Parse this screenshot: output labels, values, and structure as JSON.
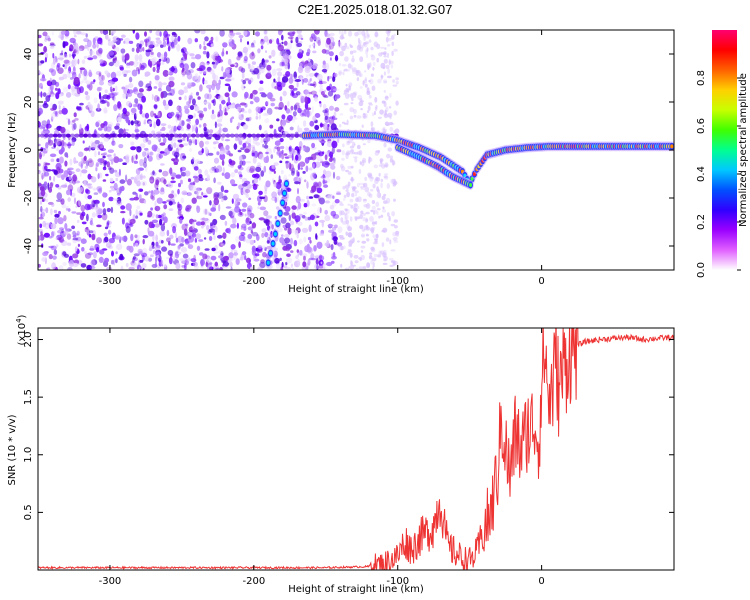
{
  "title": "C2E1.2025.018.01.32.G07",
  "chart_data": [
    {
      "type": "heatmap",
      "xlabel": "Height of straight line (km)",
      "ylabel": "Frequency (Hz)",
      "xlim": [
        -350,
        92
      ],
      "ylim": [
        -50,
        50
      ],
      "xticks": [
        -300,
        -200,
        -100,
        0
      ],
      "yticks": [
        -40,
        -20,
        0,
        20,
        40
      ],
      "colorbar": {
        "label": "Normalized spectral amplitude",
        "range": [
          0,
          1
        ],
        "ticks": [
          "0.0",
          "0.2",
          "0.4",
          "0.6",
          "0.8"
        ],
        "colors": [
          "#ffffff",
          "#e060ff",
          "#9a00ff",
          "#3000ff",
          "#0050ff",
          "#00c8ff",
          "#00ff90",
          "#40ff00",
          "#c8ff00",
          "#ffd000",
          "#ff6000",
          "#ff0000",
          "#ff0070"
        ]
      },
      "traces": [
        {
          "name": "",
          "points": [
            [
              -190,
              -47
            ],
            [
              -185,
              -35
            ],
            [
              -180,
              -22
            ],
            [
              -176,
              -10
            ]
          ]
        },
        {
          "name": "",
          "points": [
            [
              -165,
              6
            ],
            [
              -140,
              6.5
            ],
            [
              -115,
              6
            ],
            [
              -100,
              4
            ],
            [
              -85,
              1
            ],
            [
              -70,
              -3
            ],
            [
              -55,
              -9
            ],
            [
              -50,
              -14
            ],
            [
              -45,
              -8
            ],
            [
              -38,
              -2
            ],
            [
              -25,
              0
            ],
            [
              -10,
              1
            ],
            [
              5,
              1.5
            ],
            [
              30,
              1.5
            ],
            [
              60,
              1.5
            ],
            [
              92,
              1.5
            ]
          ]
        },
        {
          "name": "",
          "points": [
            [
              -100,
              1
            ],
            [
              -85,
              -3
            ],
            [
              -72,
              -7
            ],
            [
              -62,
              -11
            ],
            [
              -55,
              -13
            ],
            [
              -48,
              -15
            ]
          ]
        }
      ],
      "noise_region": [
        -350,
        -140
      ],
      "scatter_region": [
        -140,
        -100
      ],
      "constant_line_y": 6
    },
    {
      "type": "line",
      "xlabel": "Height of straight line (km)",
      "ylabel": "SNR (10 * v/v)",
      "multiplier": "(x10^4)",
      "multiplier_base": "(x10",
      "multiplier_exp": "4",
      "xlim": [
        -350,
        92
      ],
      "ylim": [
        0,
        2.1
      ],
      "xticks": [
        -300,
        -200,
        -100,
        0
      ],
      "yticks": [
        "0.5",
        "1.0",
        "1.5",
        "2.0"
      ],
      "color": "#ee3333",
      "series": [
        {
          "x": [
            -350,
            -300,
            -250,
            -200,
            -150,
            -120,
            -110,
            -100,
            -95,
            -90,
            -85,
            -80,
            -75,
            -72,
            -70,
            -68,
            -65,
            -60,
            -55,
            -50,
            -45,
            -40,
            -35,
            -30,
            -28,
            -25,
            -22,
            -20,
            -18,
            -15,
            -12,
            -10,
            -8,
            -5,
            -2,
            0,
            2,
            5,
            8,
            10,
            12,
            15,
            20,
            25,
            30,
            40,
            50,
            60,
            70,
            80,
            92
          ],
          "y": [
            0.02,
            0.02,
            0.02,
            0.02,
            0.02,
            0.03,
            0.05,
            0.12,
            0.25,
            0.18,
            0.28,
            0.32,
            0.38,
            0.55,
            0.62,
            0.4,
            0.2,
            0.15,
            0.1,
            0.08,
            0.15,
            0.35,
            0.5,
            0.9,
            1.35,
            1.05,
            0.8,
            1.0,
            1.2,
            1.05,
            1.1,
            1.25,
            1.2,
            1.3,
            1.1,
            1.6,
            1.95,
            1.45,
            1.6,
            1.85,
            1.55,
            1.75,
            1.9,
            1.95,
            1.98,
            2.0,
            2.01,
            2.02,
            2.0,
            2.01,
            2.02
          ]
        }
      ]
    }
  ]
}
